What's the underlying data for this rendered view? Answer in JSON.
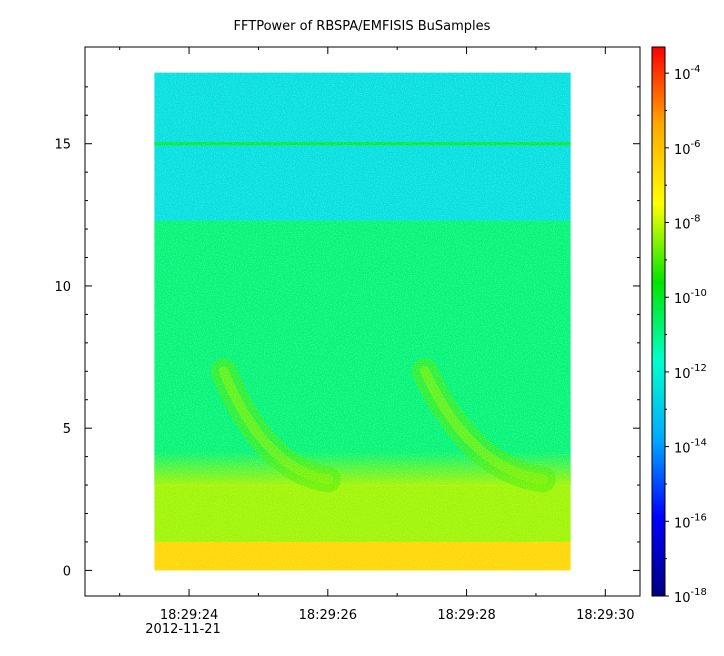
{
  "chart_data": {
    "type": "heatmap",
    "title": "FFTPower of RBSPA/EMFISIS  BuSamples",
    "xlabel": "",
    "ylabel": "",
    "x_ticks": [
      {
        "label": "18:29:24",
        "sub": "2012-11-21",
        "t": 24
      },
      {
        "label": "18:29:26",
        "sub": "",
        "t": 26
      },
      {
        "label": "18:29:28",
        "sub": "",
        "t": 28
      },
      {
        "label": "18:29:30",
        "sub": "",
        "t": 30
      }
    ],
    "x_range_seconds": [
      22.5,
      30.5
    ],
    "data_x_range_seconds": [
      23.5,
      29.5
    ],
    "y_ticks": [
      0,
      5,
      10,
      15
    ],
    "ylim": [
      -0.9,
      18.4
    ],
    "data_y_range": [
      0,
      17.5
    ],
    "colorbar": {
      "scale": "log",
      "range_exp": [
        -18,
        -3.3
      ],
      "ticks": [
        {
          "base": "10",
          "exp": "-4",
          "v": -4
        },
        {
          "base": "10",
          "exp": "-6",
          "v": -6
        },
        {
          "base": "10",
          "exp": "-8",
          "v": -8
        },
        {
          "base": "10",
          "exp": "-10",
          "v": -10
        },
        {
          "base": "10",
          "exp": "-12",
          "v": -12
        },
        {
          "base": "10",
          "exp": "-14",
          "v": -14
        },
        {
          "base": "10",
          "exp": "-16",
          "v": -16
        },
        {
          "base": "10",
          "exp": "-18",
          "v": -18
        }
      ],
      "colormap": [
        "#00007f",
        "#0000ff",
        "#00aaff",
        "#00ffcc",
        "#00e600",
        "#ffff00",
        "#ffaa00",
        "#ff0000"
      ]
    },
    "bands": [
      {
        "y_from": 12.3,
        "y_to": 17.5,
        "level": -12.5
      },
      {
        "y_from": 3.0,
        "y_to": 12.3,
        "level": -10.8
      },
      {
        "y_from": 1.0,
        "y_to": 3.0,
        "level": -8.3
      },
      {
        "y_from": 0.0,
        "y_to": 1.0,
        "level": -6.5
      }
    ],
    "line_features": [
      {
        "y": 15.0,
        "level": -10.0
      }
    ],
    "chorus_features": [
      {
        "t_start": 24.5,
        "t_end": 26.0,
        "y_start": 7.0,
        "y_end": 3.2,
        "level": -9.0
      },
      {
        "t_start": 27.4,
        "t_end": 29.1,
        "y_start": 7.0,
        "y_end": 3.2,
        "level": -9.0
      }
    ]
  }
}
